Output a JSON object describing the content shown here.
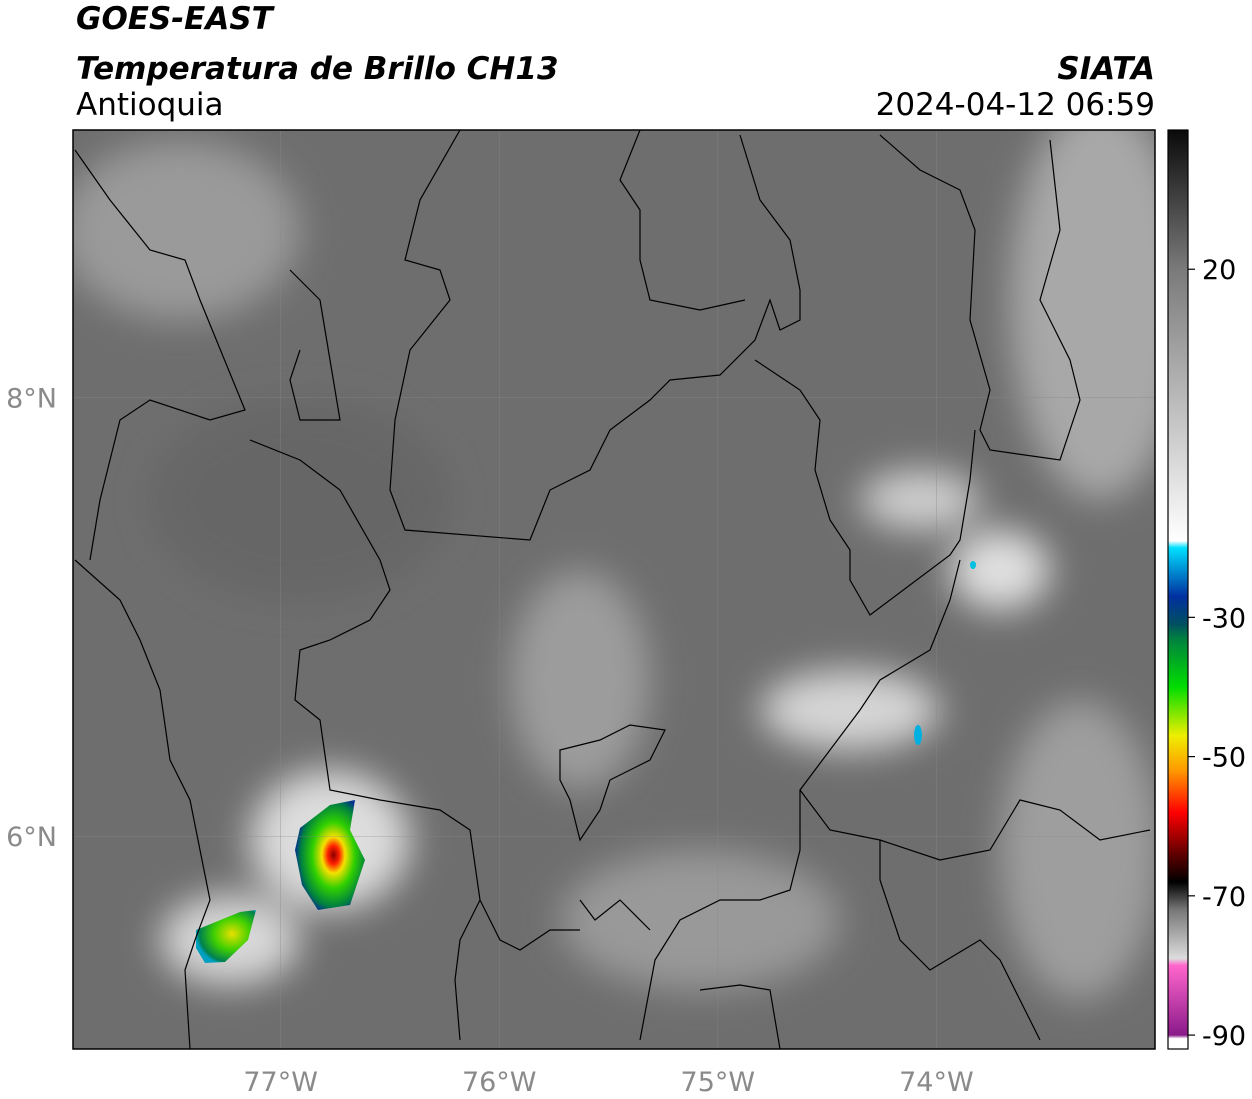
{
  "header": {
    "satellite": "GOES-EAST",
    "product": "Temperatura de Brillo CH13",
    "region": "Antioquia",
    "source": "SIATA",
    "datetime": "2024-04-12 06:59"
  },
  "map": {
    "lon_range": [
      -77.95,
      -73.0
    ],
    "lat_range": [
      5.03,
      9.22
    ],
    "lon_ticks": [
      {
        "value": -77,
        "label": "77°W"
      },
      {
        "value": -76,
        "label": "76°W"
      },
      {
        "value": -75,
        "label": "75°W"
      },
      {
        "value": -74,
        "label": "74°W"
      }
    ],
    "lat_ticks": [
      {
        "value": 8,
        "label": "8°N"
      },
      {
        "value": 6,
        "label": "6°N"
      }
    ],
    "grid": true
  },
  "colorbar": {
    "range": [
      -92,
      40
    ],
    "ticks": [
      20,
      -30,
      -50,
      -70,
      -90
    ],
    "stops": [
      {
        "value": 40,
        "color": "#0a0a0a"
      },
      {
        "value": 20,
        "color": "#7a7a7a"
      },
      {
        "value": -19,
        "color": "#ffffff"
      },
      {
        "value": -20,
        "color": "#00e0ff"
      },
      {
        "value": -27,
        "color": "#0030a0"
      },
      {
        "value": -31,
        "color": "#005060"
      },
      {
        "value": -33,
        "color": "#008040"
      },
      {
        "value": -40,
        "color": "#00dd00"
      },
      {
        "value": -47,
        "color": "#eeee00"
      },
      {
        "value": -52,
        "color": "#ff9900"
      },
      {
        "value": -58,
        "color": "#ff0000"
      },
      {
        "value": -64,
        "color": "#600000"
      },
      {
        "value": -68,
        "color": "#000000"
      },
      {
        "value": -72,
        "color": "#777777"
      },
      {
        "value": -79,
        "color": "#dddddd"
      },
      {
        "value": -80,
        "color": "#ff66cc"
      },
      {
        "value": -90,
        "color": "#8a1a8a"
      },
      {
        "value": -90.5,
        "color": "#ffffff"
      },
      {
        "value": -92,
        "color": "#ffffff"
      }
    ]
  }
}
